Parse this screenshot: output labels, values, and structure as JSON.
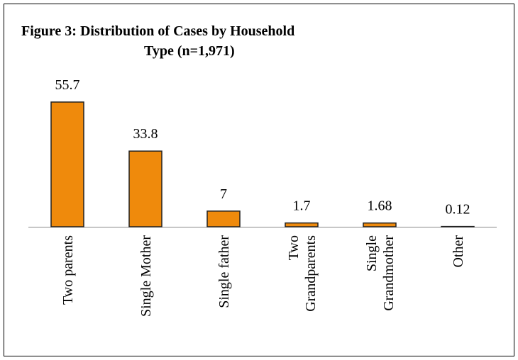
{
  "chart_data": {
    "type": "bar",
    "title": "Figure 3: Distribution of Cases by Household\nType (n=1,971)",
    "categories": [
      "Two parents",
      "Single Mother",
      "Single father",
      "Two\nGrandparents",
      "Single\nGrandmother",
      "Other"
    ],
    "values": [
      55.7,
      33.8,
      7,
      1.7,
      1.68,
      0.12
    ],
    "color": "#ef8a0c"
  }
}
